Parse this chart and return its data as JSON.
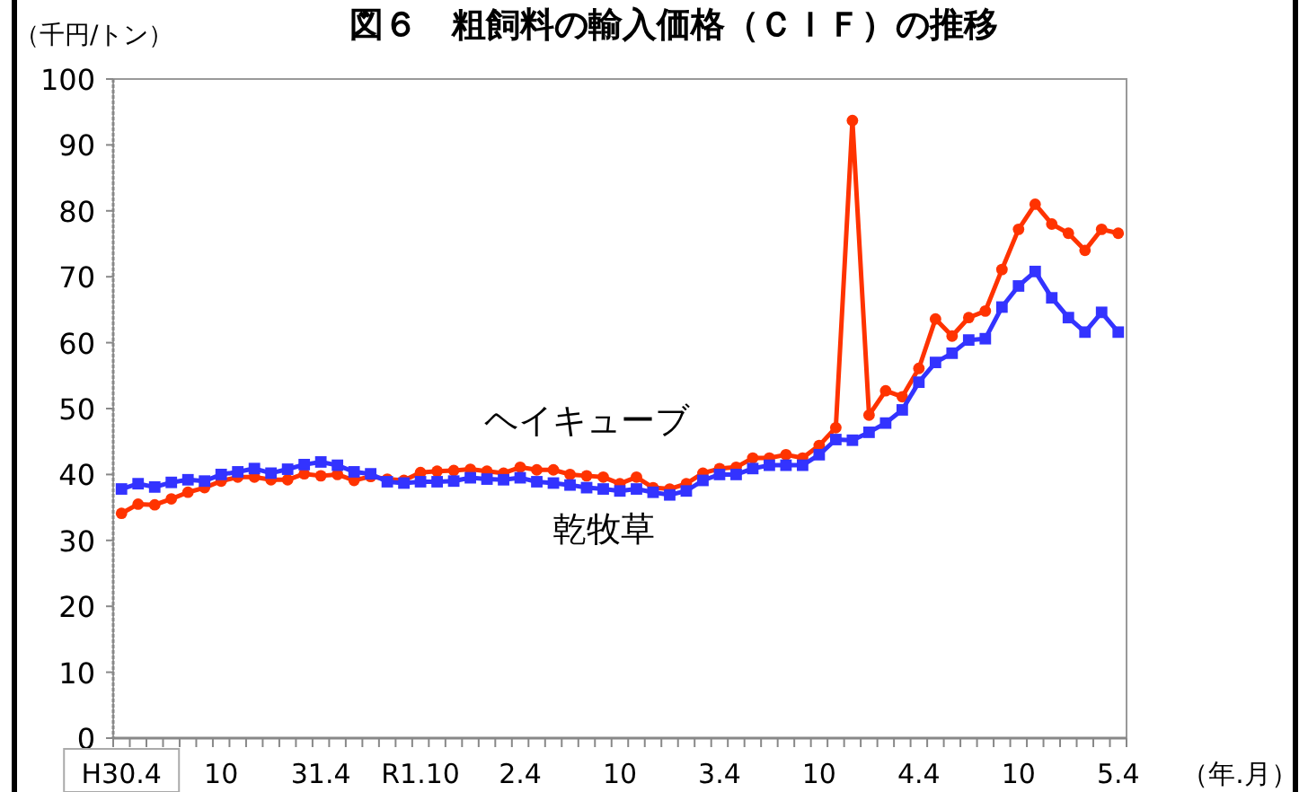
{
  "chart_data": {
    "type": "line",
    "title": "図６　粗飼料の輸入価格（ＣＩＦ）の推移",
    "ylabel": "（千円/トン）",
    "xlabel": "（年.月）",
    "categories": [
      "H30.4",
      null,
      null,
      null,
      null,
      null,
      "10",
      null,
      null,
      null,
      null,
      null,
      "31.4",
      null,
      null,
      null,
      null,
      null,
      "R1.10",
      null,
      null,
      null,
      null,
      null,
      "2.4",
      null,
      null,
      null,
      null,
      null,
      "10",
      null,
      null,
      null,
      null,
      null,
      "3.4",
      null,
      null,
      null,
      null,
      null,
      "10",
      null,
      null,
      null,
      null,
      null,
      "4.4",
      null,
      null,
      null,
      null,
      null,
      "10",
      null,
      null,
      null,
      null,
      null,
      "5.4"
    ],
    "series": [
      {
        "name": "ヘイキューブ",
        "color": "#ff3300",
        "marker": "circle",
        "values": [
          34.1,
          35.5,
          35.4,
          36.3,
          37.3,
          38.0,
          39.0,
          39.6,
          39.6,
          39.2,
          39.2,
          40.1,
          39.8,
          40.0,
          39.1,
          39.7,
          39.3,
          39.1,
          40.3,
          40.5,
          40.6,
          40.8,
          40.5,
          40.2,
          41.1,
          40.7,
          40.7,
          40.0,
          39.8,
          39.6,
          38.6,
          39.6,
          38.0,
          37.8,
          38.6,
          40.2,
          40.9,
          41.1,
          42.5,
          42.5,
          43.0,
          42.5,
          44.4,
          47.1,
          93.7,
          49.0,
          52.7,
          51.8,
          56.1,
          63.6,
          61.0,
          63.8,
          64.8,
          71.1,
          77.2,
          81.0,
          78.0,
          76.6,
          74.0,
          77.2,
          76.6
        ]
      },
      {
        "name": "乾牧草",
        "color": "#3333ff",
        "marker": "square",
        "values": [
          37.8,
          38.6,
          38.1,
          38.8,
          39.2,
          39.0,
          40.0,
          40.4,
          40.9,
          40.2,
          40.8,
          41.5,
          41.9,
          41.4,
          40.4,
          40.1,
          38.9,
          38.7,
          38.9,
          38.9,
          39.0,
          39.5,
          39.3,
          39.2,
          39.5,
          38.9,
          38.7,
          38.4,
          38.0,
          37.8,
          37.5,
          37.8,
          37.3,
          36.9,
          37.5,
          39.1,
          40.0,
          40.0,
          40.9,
          41.4,
          41.4,
          41.4,
          43.0,
          45.3,
          45.2,
          46.4,
          47.8,
          49.8,
          54.0,
          57.0,
          58.4,
          60.4,
          60.6,
          65.4,
          68.6,
          70.8,
          66.8,
          63.8,
          61.6,
          64.6,
          61.6
        ]
      }
    ],
    "ylim": [
      0,
      100
    ],
    "yticks": [
      0,
      10,
      20,
      30,
      40,
      50,
      60,
      70,
      80,
      90,
      100
    ],
    "grid": false,
    "legend": false
  }
}
